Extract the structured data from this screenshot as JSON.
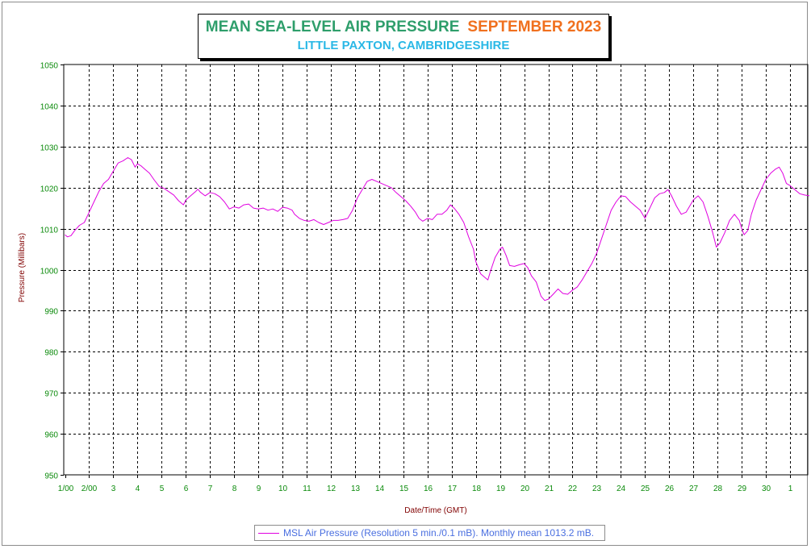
{
  "header": {
    "title": "MEAN SEA-LEVEL AIR PRESSURE",
    "period": "SEPTEMBER 2023",
    "subtitle": "LITTLE PAXTON, CAMBRIDGESHIRE"
  },
  "legend": {
    "label": "MSL Air Pressure (Resolution 5 min./0.1 mB). Monthly mean 1013.2 mB."
  },
  "colors": {
    "series": "#e000e0",
    "ticks": "#0a8a0a",
    "axis_titles": "#800000",
    "grid": "#000000"
  },
  "chart_data": {
    "type": "line",
    "title": "MEAN SEA-LEVEL AIR PRESSURE SEPTEMBER 2023",
    "subtitle": "LITTLE PAXTON, CAMBRIDGESHIRE",
    "xlabel": "Date/Time (GMT)",
    "ylabel": "Pressure (Millibars)",
    "x_unit": "day of month (GMT), 1.0 = 1 Sep 00:00, 31.0 = 1 Oct 00:00",
    "xlim": [
      1,
      31.85
    ],
    "ylim": [
      950,
      1050
    ],
    "yticks": [
      950,
      960,
      970,
      980,
      990,
      1000,
      1010,
      1020,
      1030,
      1040,
      1050
    ],
    "xtick_values": [
      1,
      2,
      3,
      4,
      5,
      6,
      7,
      8,
      9,
      10,
      11,
      12,
      13,
      14,
      15,
      16,
      17,
      18,
      19,
      20,
      21,
      22,
      23,
      24,
      25,
      26,
      27,
      28,
      29,
      30,
      31
    ],
    "xtick_labels": [
      "1/00",
      "2/00",
      "3",
      "4",
      "5",
      "6",
      "7",
      "8",
      "9",
      "10",
      "11",
      "12",
      "13",
      "14",
      "15",
      "16",
      "17",
      "18",
      "19",
      "20",
      "21",
      "22",
      "23",
      "24",
      "25",
      "26",
      "27",
      "28",
      "29",
      "30",
      "1"
    ],
    "grid": true,
    "legend_position": "bottom",
    "series": [
      {
        "name": "MSL Air Pressure (Resolution 5 min./0.1 mB). Monthly mean 1013.2 mB.",
        "points": [
          [
            1.0,
            1008.5
          ],
          [
            1.1,
            1008.0
          ],
          [
            1.25,
            1008.3
          ],
          [
            1.4,
            1009.5
          ],
          [
            1.6,
            1010.8
          ],
          [
            1.8,
            1011.5
          ],
          [
            2.0,
            1014.0
          ],
          [
            2.2,
            1016.5
          ],
          [
            2.4,
            1019.0
          ],
          [
            2.6,
            1021.0
          ],
          [
            2.8,
            1022.0
          ],
          [
            3.0,
            1024.0
          ],
          [
            3.2,
            1026.0
          ],
          [
            3.4,
            1026.5
          ],
          [
            3.6,
            1027.3
          ],
          [
            3.75,
            1026.8
          ],
          [
            3.9,
            1025.0
          ],
          [
            4.0,
            1025.8
          ],
          [
            4.15,
            1025.3
          ],
          [
            4.3,
            1024.5
          ],
          [
            4.5,
            1023.5
          ],
          [
            4.7,
            1021.8
          ],
          [
            4.9,
            1020.3
          ],
          [
            5.1,
            1019.8
          ],
          [
            5.3,
            1019.0
          ],
          [
            5.5,
            1018.2
          ],
          [
            5.7,
            1016.8
          ],
          [
            5.9,
            1015.8
          ],
          [
            6.0,
            1017.0
          ],
          [
            6.2,
            1018.0
          ],
          [
            6.4,
            1019.0
          ],
          [
            6.5,
            1019.6
          ],
          [
            6.6,
            1018.9
          ],
          [
            6.8,
            1018.0
          ],
          [
            7.0,
            1018.8
          ],
          [
            7.2,
            1018.5
          ],
          [
            7.4,
            1017.8
          ],
          [
            7.6,
            1016.5
          ],
          [
            7.8,
            1014.8
          ],
          [
            8.0,
            1015.3
          ],
          [
            8.2,
            1015.0
          ],
          [
            8.4,
            1015.8
          ],
          [
            8.6,
            1016.0
          ],
          [
            8.8,
            1015.0
          ],
          [
            9.0,
            1014.8
          ],
          [
            9.2,
            1015.0
          ],
          [
            9.4,
            1014.5
          ],
          [
            9.6,
            1014.8
          ],
          [
            9.8,
            1014.2
          ],
          [
            10.0,
            1015.2
          ],
          [
            10.2,
            1015.0
          ],
          [
            10.4,
            1014.5
          ],
          [
            10.5,
            1013.5
          ],
          [
            10.7,
            1012.5
          ],
          [
            10.9,
            1012.0
          ],
          [
            11.1,
            1011.8
          ],
          [
            11.3,
            1012.2
          ],
          [
            11.5,
            1011.5
          ],
          [
            11.7,
            1011.0
          ],
          [
            11.9,
            1011.5
          ],
          [
            12.1,
            1012.0
          ],
          [
            12.3,
            1012.0
          ],
          [
            12.5,
            1012.2
          ],
          [
            12.7,
            1012.5
          ],
          [
            12.9,
            1014.5
          ],
          [
            13.1,
            1017.5
          ],
          [
            13.3,
            1019.5
          ],
          [
            13.5,
            1021.5
          ],
          [
            13.7,
            1022.0
          ],
          [
            13.9,
            1021.5
          ],
          [
            14.1,
            1021.0
          ],
          [
            14.3,
            1020.5
          ],
          [
            14.5,
            1020.0
          ],
          [
            14.7,
            1018.8
          ],
          [
            14.9,
            1017.8
          ],
          [
            15.1,
            1016.8
          ],
          [
            15.3,
            1015.5
          ],
          [
            15.5,
            1014.0
          ],
          [
            15.65,
            1012.5
          ],
          [
            15.8,
            1011.8
          ],
          [
            16.0,
            1012.5
          ],
          [
            16.2,
            1012.2
          ],
          [
            16.4,
            1013.5
          ],
          [
            16.6,
            1013.5
          ],
          [
            16.8,
            1014.5
          ],
          [
            16.95,
            1015.8
          ],
          [
            17.1,
            1015.0
          ],
          [
            17.3,
            1013.5
          ],
          [
            17.5,
            1011.5
          ],
          [
            17.7,
            1008.0
          ],
          [
            17.9,
            1005.0
          ],
          [
            18.0,
            1002.0
          ],
          [
            18.2,
            999.0
          ],
          [
            18.4,
            998.0
          ],
          [
            18.5,
            997.5
          ],
          [
            18.6,
            999.5
          ],
          [
            18.8,
            1003.0
          ],
          [
            19.0,
            1005.0
          ],
          [
            19.1,
            1005.5
          ],
          [
            19.25,
            1003.5
          ],
          [
            19.4,
            1001.0
          ],
          [
            19.6,
            1000.8
          ],
          [
            19.8,
            1001.2
          ],
          [
            20.0,
            1001.5
          ],
          [
            20.15,
            1000.5
          ],
          [
            20.3,
            998.5
          ],
          [
            20.5,
            997.0
          ],
          [
            20.7,
            993.5
          ],
          [
            20.85,
            992.5
          ],
          [
            21.0,
            992.8
          ],
          [
            21.2,
            994.0
          ],
          [
            21.4,
            995.3
          ],
          [
            21.6,
            994.2
          ],
          [
            21.8,
            994.0
          ],
          [
            22.0,
            995.0
          ],
          [
            22.2,
            995.8
          ],
          [
            22.4,
            997.5
          ],
          [
            22.6,
            999.5
          ],
          [
            22.8,
            1001.5
          ],
          [
            23.0,
            1004.0
          ],
          [
            23.2,
            1007.5
          ],
          [
            23.4,
            1011.0
          ],
          [
            23.6,
            1014.5
          ],
          [
            23.8,
            1016.5
          ],
          [
            24.0,
            1018.0
          ],
          [
            24.2,
            1017.8
          ],
          [
            24.4,
            1016.5
          ],
          [
            24.6,
            1015.5
          ],
          [
            24.8,
            1014.5
          ],
          [
            25.0,
            1012.5
          ],
          [
            25.2,
            1015.0
          ],
          [
            25.4,
            1017.5
          ],
          [
            25.6,
            1018.5
          ],
          [
            25.8,
            1018.8
          ],
          [
            25.95,
            1019.5
          ],
          [
            26.1,
            1018.0
          ],
          [
            26.3,
            1015.5
          ],
          [
            26.5,
            1013.5
          ],
          [
            26.7,
            1014.0
          ],
          [
            26.85,
            1015.5
          ],
          [
            27.0,
            1017.0
          ],
          [
            27.2,
            1018.0
          ],
          [
            27.4,
            1016.5
          ],
          [
            27.6,
            1013.0
          ],
          [
            27.8,
            1009.0
          ],
          [
            27.95,
            1005.5
          ],
          [
            28.1,
            1006.5
          ],
          [
            28.3,
            1009.0
          ],
          [
            28.5,
            1012.0
          ],
          [
            28.7,
            1013.5
          ],
          [
            28.9,
            1012.0
          ],
          [
            29.0,
            1010.0
          ],
          [
            29.1,
            1008.5
          ],
          [
            29.25,
            1009.5
          ],
          [
            29.4,
            1013.5
          ],
          [
            29.6,
            1017.0
          ],
          [
            29.8,
            1019.5
          ],
          [
            30.0,
            1022.0
          ],
          [
            30.2,
            1023.5
          ],
          [
            30.4,
            1024.5
          ],
          [
            30.55,
            1025.0
          ],
          [
            30.7,
            1023.5
          ],
          [
            30.85,
            1021.0
          ],
          [
            31.0,
            1020.5
          ],
          [
            31.2,
            1019.5
          ],
          [
            31.4,
            1018.5
          ],
          [
            31.6,
            1018.2
          ],
          [
            31.8,
            1018.0
          ]
        ]
      }
    ]
  }
}
